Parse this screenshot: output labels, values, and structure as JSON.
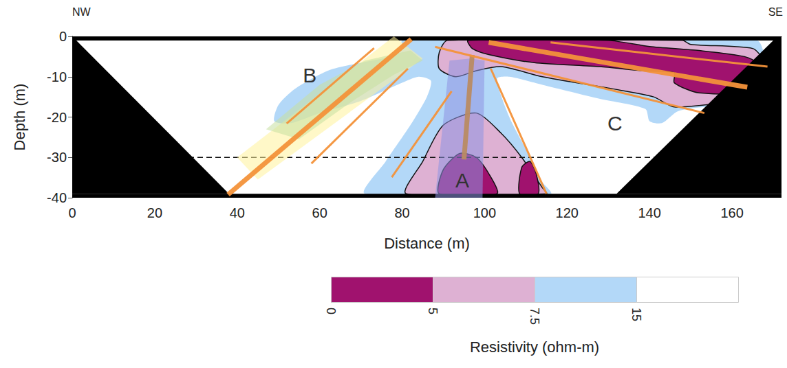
{
  "chart_data": {
    "type": "cross_section",
    "x_label": "Distance (m)",
    "y_label": "Depth (m)",
    "xlim": [
      0,
      172
    ],
    "xticks": [
      0,
      20,
      40,
      60,
      80,
      100,
      120,
      140,
      160
    ],
    "ylim": [
      -40,
      0
    ],
    "yticks": [
      0,
      -10,
      -20,
      -30,
      -40
    ],
    "corner_labels": {
      "left": "NW",
      "right": "SE"
    },
    "colorbar": {
      "title": "Resistivity (ohm-m)",
      "ticks": [
        0,
        5,
        7.5,
        15
      ],
      "colors": [
        "#a0126e",
        "#deb1d3",
        "#b3d8f8",
        "#ffffff"
      ]
    },
    "zones": [
      {
        "resistivity": [
          7.5,
          15
        ],
        "line_style": "none",
        "points": [
          [
            80,
            -1
          ],
          [
            166,
            -1
          ],
          [
            168,
            -6
          ],
          [
            168,
            -15
          ],
          [
            157,
            -17
          ],
          [
            147,
            -18.5
          ],
          [
            143,
            -21.5
          ],
          [
            140,
            -21
          ],
          [
            139,
            -18
          ],
          [
            128,
            -15.5
          ],
          [
            114,
            -12
          ],
          [
            106,
            -10
          ],
          [
            103,
            -10.5
          ],
          [
            106,
            -20
          ],
          [
            110,
            -28
          ],
          [
            113,
            -35
          ],
          [
            116,
            -39
          ],
          [
            71,
            -39
          ],
          [
            76,
            -31
          ],
          [
            82,
            -22
          ],
          [
            86,
            -15
          ],
          [
            87,
            -11
          ],
          [
            84,
            -10
          ],
          [
            80,
            -11.5
          ],
          [
            70,
            -16
          ],
          [
            60,
            -19
          ],
          [
            53,
            -21.5
          ],
          [
            49,
            -21
          ],
          [
            50,
            -17
          ],
          [
            54,
            -13
          ],
          [
            62,
            -8.5
          ],
          [
            70,
            -6.5
          ],
          [
            77,
            -5
          ],
          [
            80,
            -3
          ]
        ]
      },
      {
        "resistivity": [
          5,
          7.5
        ],
        "line_style": "solid",
        "points": [
          [
            89,
            -4
          ],
          [
            91,
            -1
          ],
          [
            148,
            -1
          ],
          [
            150,
            -2
          ],
          [
            165,
            -3
          ],
          [
            167.5,
            -6
          ],
          [
            167.5,
            -14.5
          ],
          [
            157,
            -16.5
          ],
          [
            146,
            -17.5
          ],
          [
            141,
            -15
          ],
          [
            131,
            -13
          ],
          [
            114,
            -10
          ],
          [
            104,
            -7.5
          ],
          [
            98,
            -8.5
          ],
          [
            93,
            -10
          ],
          [
            89,
            -8
          ]
        ]
      },
      {
        "resistivity": [
          0,
          5
        ],
        "line_style": "solid",
        "points": [
          [
            96,
            -1
          ],
          [
            130,
            -1
          ],
          [
            140,
            -2.5
          ],
          [
            152,
            -3.5
          ],
          [
            163,
            -5
          ],
          [
            166.5,
            -7
          ],
          [
            166.5,
            -13.5
          ],
          [
            152,
            -14
          ],
          [
            146,
            -11.5
          ],
          [
            146,
            -9
          ],
          [
            138,
            -8.5
          ],
          [
            128,
            -7.5
          ],
          [
            112,
            -6.5
          ],
          [
            101,
            -4.5
          ],
          [
            97,
            -3
          ]
        ]
      },
      {
        "resistivity": [
          5,
          7.5
        ],
        "line_style": "solid",
        "points": [
          [
            81,
            -39
          ],
          [
            85,
            -31
          ],
          [
            90,
            -22
          ],
          [
            98,
            -19
          ],
          [
            104,
            -24
          ],
          [
            109,
            -30
          ],
          [
            114,
            -37.5
          ],
          [
            115,
            -39
          ]
        ]
      },
      {
        "resistivity": [
          0,
          5
        ],
        "line_style": "solid",
        "points": [
          [
            89,
            -39
          ],
          [
            90,
            -33
          ],
          [
            94,
            -29
          ],
          [
            98,
            -30
          ],
          [
            101,
            -34
          ],
          [
            103,
            -39
          ]
        ]
      },
      {
        "resistivity": [
          0,
          5
        ],
        "line_style": "solid",
        "points": [
          [
            108.5,
            -39
          ],
          [
            109,
            -32.5
          ],
          [
            111,
            -31
          ],
          [
            112.5,
            -34
          ],
          [
            113,
            -39
          ]
        ]
      }
    ],
    "masks": [
      [
        [
          0,
          0
        ],
        [
          172,
          0
        ],
        [
          172,
          -1
        ],
        [
          0,
          -1
        ]
      ],
      [
        [
          0,
          -39
        ],
        [
          172,
          -39
        ],
        [
          172,
          -40
        ],
        [
          0,
          -40
        ]
      ],
      [
        [
          0,
          -1
        ],
        [
          1,
          -1
        ],
        [
          38,
          -39
        ],
        [
          0,
          -39
        ]
      ],
      [
        [
          172,
          -1
        ],
        [
          170,
          -1
        ],
        [
          132,
          -39
        ],
        [
          172,
          -39
        ]
      ]
    ],
    "highlights": [
      {
        "color": "#fff39a",
        "points": [
          [
            40,
            -30
          ],
          [
            45,
            -35.5
          ],
          [
            85,
            -5.5
          ],
          [
            78,
            0
          ]
        ]
      },
      {
        "color": "#c6e0a0",
        "points": [
          [
            47,
            -23
          ],
          [
            55,
            -25.5
          ],
          [
            68,
            -16
          ],
          [
            78,
            -9.5
          ],
          [
            85,
            -6
          ],
          [
            82,
            -3.5
          ],
          [
            71,
            -6
          ],
          [
            60,
            -12
          ]
        ]
      },
      {
        "color": "#8e93e2",
        "points": [
          [
            88,
            -40
          ],
          [
            91.5,
            -6
          ],
          [
            96.5,
            -5.5
          ],
          [
            100,
            -6
          ],
          [
            99.5,
            -40
          ]
        ]
      }
    ],
    "faults": [
      {
        "points": [
          [
            37.8,
            -39.2
          ],
          [
            82.2,
            -0.7
          ]
        ],
        "line_style": "thick",
        "color": "#f3923a"
      },
      {
        "points": [
          [
            101,
            -1.5
          ],
          [
            163.7,
            -12.6
          ]
        ],
        "line_style": "thick",
        "color": "#f3923a"
      },
      {
        "points": [
          [
            97,
            -4.6
          ],
          [
            95,
            -30.5
          ]
        ],
        "line_style": "thick",
        "color": "#b98b63"
      },
      {
        "points": [
          [
            52,
            -21.6
          ],
          [
            73.2,
            -2.9
          ]
        ],
        "line_style": "thin",
        "color": "#f3923a"
      },
      {
        "points": [
          [
            58,
            -31.5
          ],
          [
            81.4,
            -8
          ]
        ],
        "line_style": "thin",
        "color": "#f3923a"
      },
      {
        "points": [
          [
            77.5,
            -34.9
          ],
          [
            92,
            -13.6
          ]
        ],
        "line_style": "thin",
        "color": "#f3923a"
      },
      {
        "points": [
          [
            88,
            -2.6
          ],
          [
            153.3,
            -19
          ]
        ],
        "line_style": "thin",
        "color": "#f3923a"
      },
      {
        "points": [
          [
            116,
            -1.5
          ],
          [
            168.6,
            -7.5
          ]
        ],
        "line_style": "thin",
        "color": "#f3923a"
      },
      {
        "points": [
          [
            101.5,
            -8
          ],
          [
            115,
            -39
          ]
        ],
        "line_style": "thin",
        "color": "#f3923a"
      }
    ],
    "reference_line": {
      "y": -30,
      "line_style": "dashed"
    },
    "annotations": [
      {
        "text": "B",
        "x": 57.6,
        "y": -9.7
      },
      {
        "text": "A",
        "x": 94.6,
        "y": -35.6
      },
      {
        "text": "C",
        "x": 131.6,
        "y": -21.6
      }
    ]
  }
}
